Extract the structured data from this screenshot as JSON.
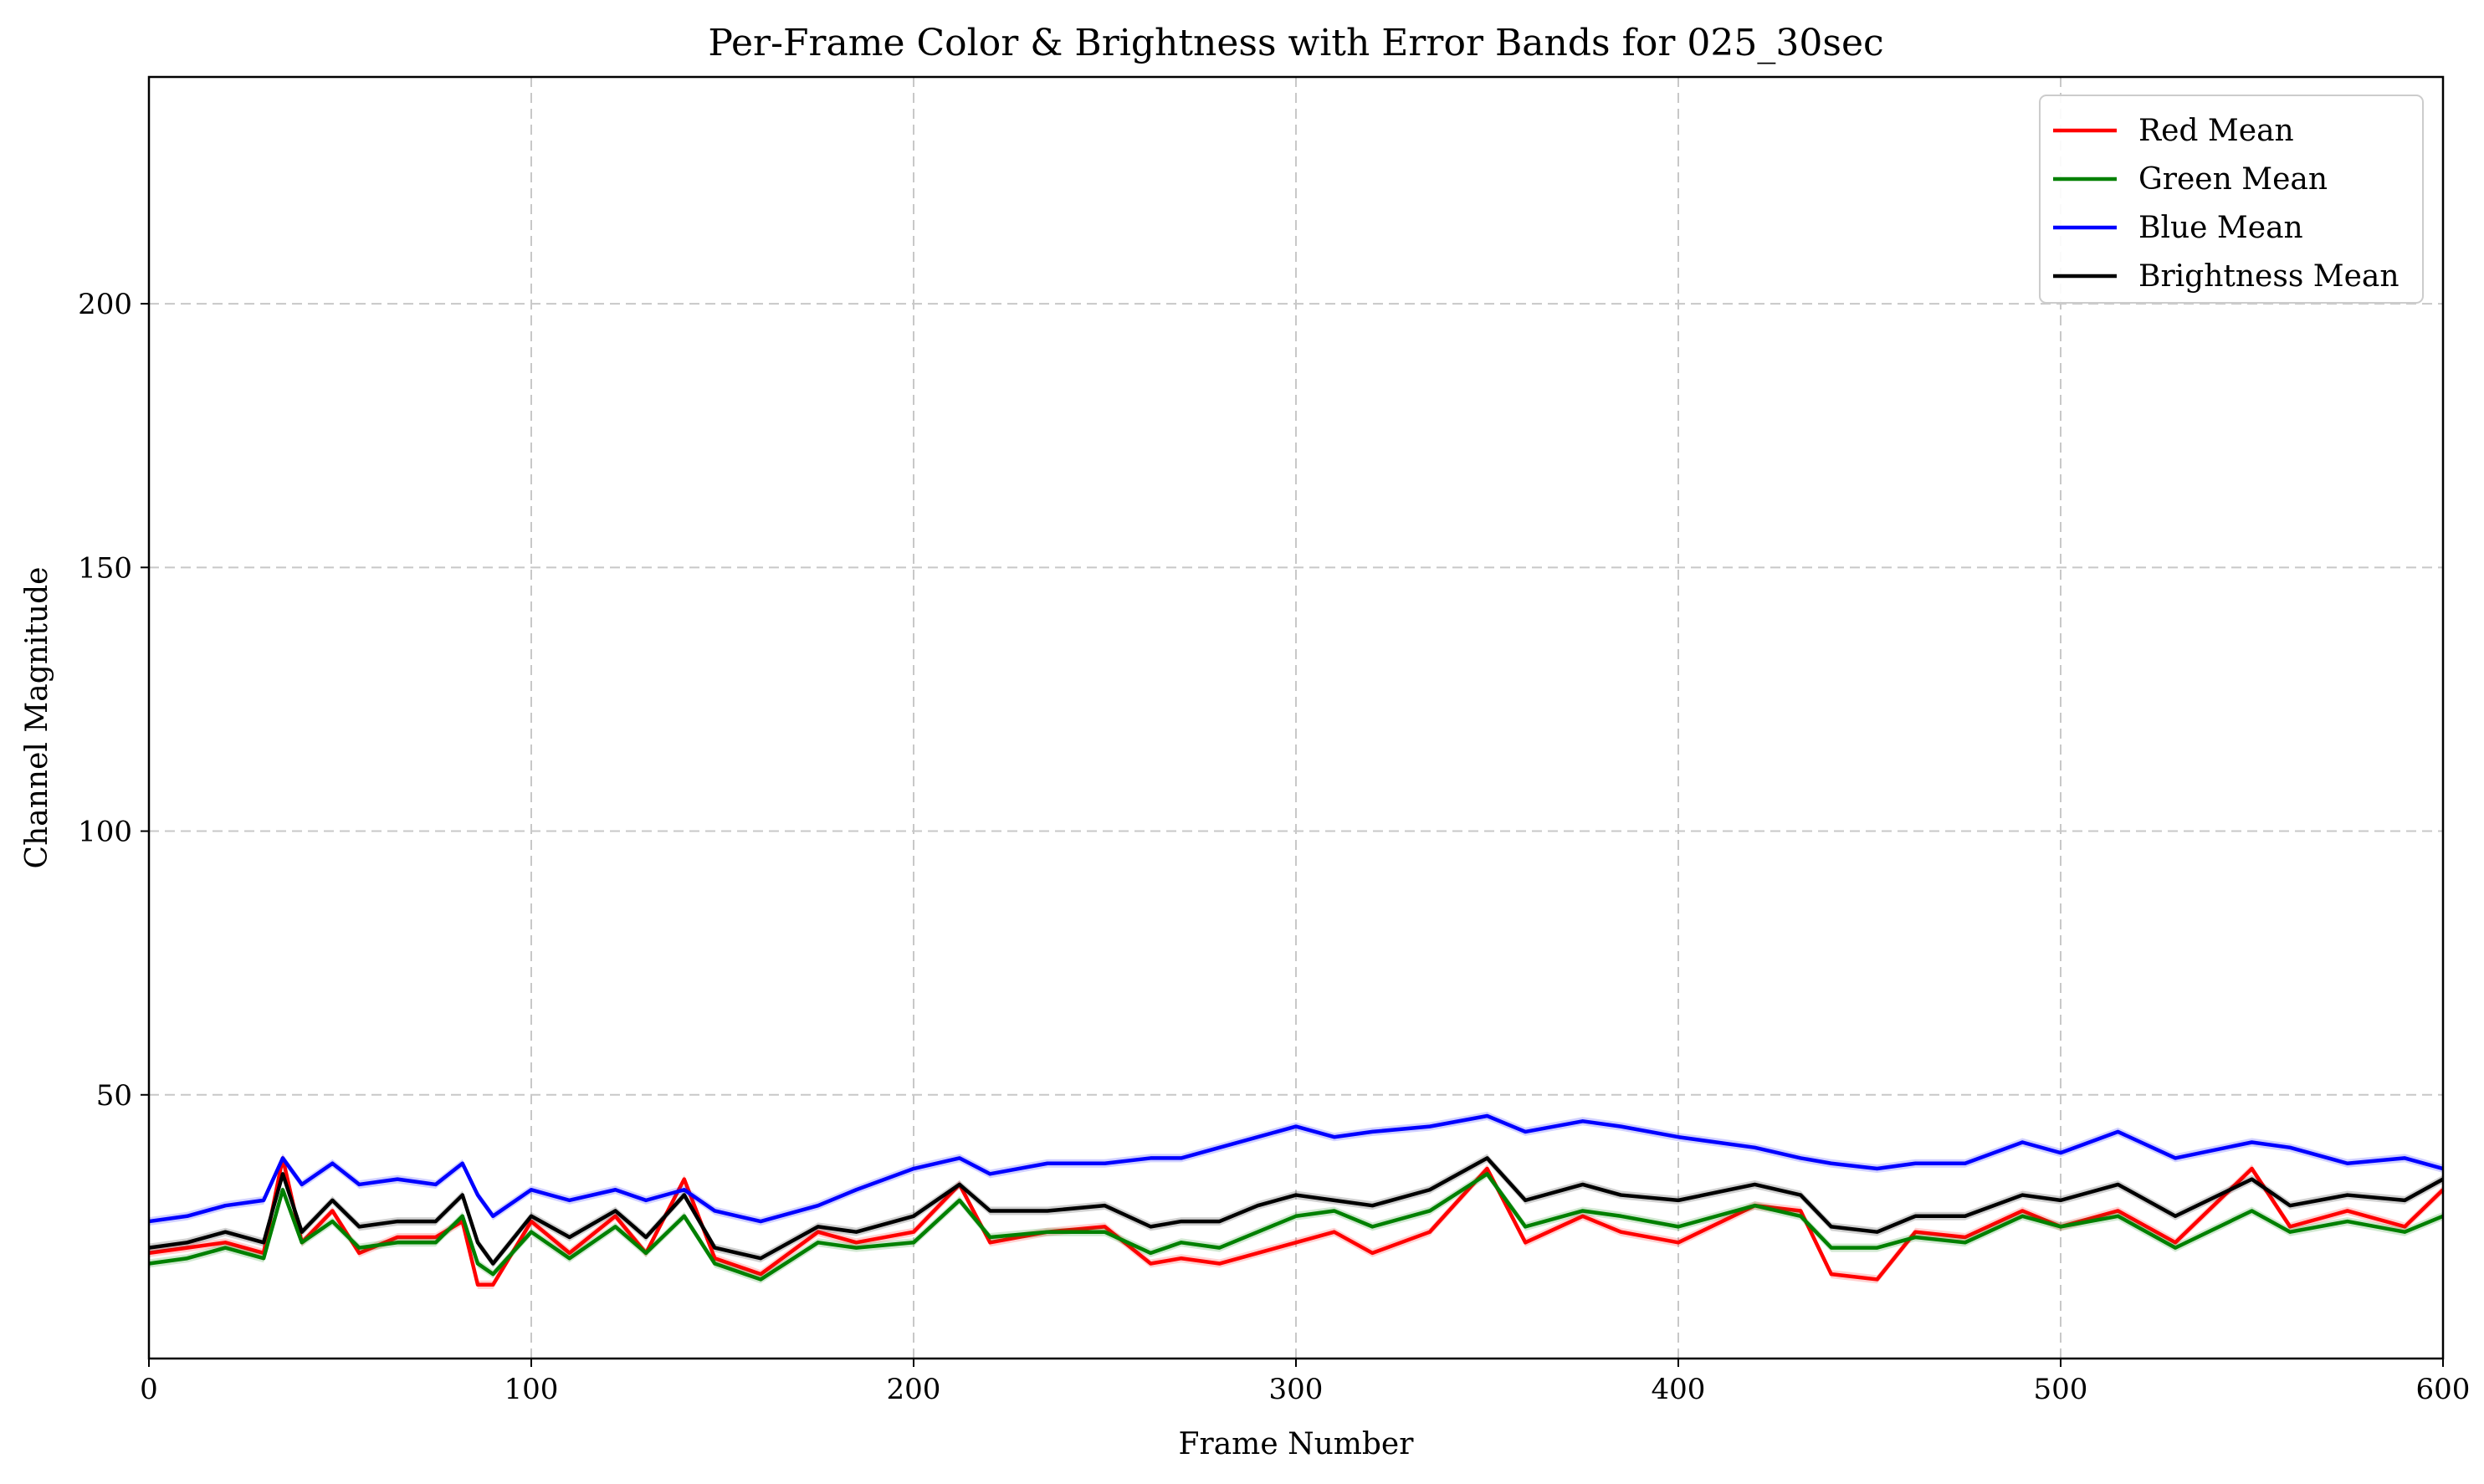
{
  "chart_data": {
    "type": "line",
    "title": "Per-Frame Color & Brightness with Error Bands for 025_30sec",
    "xlabel": "Frame Number",
    "ylabel": "Channel Magnitude",
    "xlim": [
      0,
      600
    ],
    "ylim": [
      0,
      243
    ],
    "xticks": [
      0,
      100,
      200,
      300,
      400,
      500,
      600
    ],
    "yticks": [
      50,
      100,
      150,
      200
    ],
    "grid": true,
    "grid_style": "dashed",
    "legend_position": "top-right",
    "error_bands": true,
    "series": [
      {
        "name": "Red Mean",
        "color": "#ff0000",
        "x": [
          0,
          10,
          20,
          30,
          35,
          40,
          48,
          55,
          65,
          75,
          82,
          86,
          90,
          100,
          110,
          122,
          130,
          140,
          148,
          160,
          175,
          185,
          200,
          212,
          220,
          235,
          250,
          262,
          270,
          280,
          290,
          300,
          310,
          320,
          335,
          350,
          360,
          375,
          385,
          400,
          420,
          432,
          440,
          452,
          462,
          475,
          490,
          500,
          515,
          530,
          550,
          560,
          575,
          590,
          600
        ],
        "values": [
          20,
          21,
          22,
          20,
          38,
          22,
          28,
          20,
          23,
          23,
          26,
          14,
          14,
          26,
          20,
          27,
          20,
          34,
          19,
          16,
          24,
          22,
          24,
          33,
          22,
          24,
          25,
          18,
          19,
          18,
          20,
          22,
          24,
          20,
          24,
          36,
          22,
          27,
          24,
          22,
          29,
          28,
          16,
          15,
          24,
          23,
          28,
          25,
          28,
          22,
          36,
          25,
          28,
          25,
          32
        ]
      },
      {
        "name": "Green Mean",
        "color": "#008000",
        "x": [
          0,
          10,
          20,
          30,
          35,
          40,
          48,
          55,
          65,
          75,
          82,
          86,
          90,
          100,
          110,
          122,
          130,
          140,
          148,
          160,
          175,
          185,
          200,
          212,
          220,
          235,
          250,
          262,
          270,
          280,
          290,
          300,
          310,
          320,
          335,
          350,
          360,
          375,
          385,
          400,
          420,
          432,
          440,
          452,
          462,
          475,
          490,
          500,
          515,
          530,
          550,
          560,
          575,
          590,
          600
        ],
        "values": [
          18,
          19,
          21,
          19,
          32,
          22,
          26,
          21,
          22,
          22,
          27,
          18,
          16,
          24,
          19,
          25,
          20,
          27,
          18,
          15,
          22,
          21,
          22,
          30,
          23,
          24,
          24,
          20,
          22,
          21,
          24,
          27,
          28,
          25,
          28,
          35,
          25,
          28,
          27,
          25,
          29,
          27,
          21,
          21,
          23,
          22,
          27,
          25,
          27,
          21,
          28,
          24,
          26,
          24,
          27
        ]
      },
      {
        "name": "Blue Mean",
        "color": "#0000ff",
        "x": [
          0,
          10,
          20,
          30,
          35,
          40,
          48,
          55,
          65,
          75,
          82,
          86,
          90,
          100,
          110,
          122,
          130,
          140,
          148,
          160,
          175,
          185,
          200,
          212,
          220,
          235,
          250,
          262,
          270,
          280,
          290,
          300,
          310,
          320,
          335,
          350,
          360,
          375,
          385,
          400,
          420,
          432,
          440,
          452,
          462,
          475,
          490,
          500,
          515,
          530,
          550,
          560,
          575,
          590,
          600
        ],
        "values": [
          26,
          27,
          29,
          30,
          38,
          33,
          37,
          33,
          34,
          33,
          37,
          31,
          27,
          32,
          30,
          32,
          30,
          32,
          28,
          26,
          29,
          32,
          36,
          38,
          35,
          37,
          37,
          38,
          38,
          40,
          42,
          44,
          42,
          43,
          44,
          46,
          43,
          45,
          44,
          42,
          40,
          38,
          37,
          36,
          37,
          37,
          41,
          39,
          43,
          38,
          41,
          40,
          37,
          38,
          36
        ]
      },
      {
        "name": "Brightness Mean",
        "color": "#000000",
        "x": [
          0,
          10,
          20,
          30,
          35,
          40,
          48,
          55,
          65,
          75,
          82,
          86,
          90,
          100,
          110,
          122,
          130,
          140,
          148,
          160,
          175,
          185,
          200,
          212,
          220,
          235,
          250,
          262,
          270,
          280,
          290,
          300,
          310,
          320,
          335,
          350,
          360,
          375,
          385,
          400,
          420,
          432,
          440,
          452,
          462,
          475,
          490,
          500,
          515,
          530,
          550,
          560,
          575,
          590,
          600
        ],
        "values": [
          21,
          22,
          24,
          22,
          35,
          24,
          30,
          25,
          26,
          26,
          31,
          22,
          18,
          27,
          23,
          28,
          23,
          31,
          21,
          19,
          25,
          24,
          27,
          33,
          28,
          28,
          29,
          25,
          26,
          26,
          29,
          31,
          30,
          29,
          32,
          38,
          30,
          33,
          31,
          30,
          33,
          31,
          25,
          24,
          27,
          27,
          31,
          30,
          33,
          27,
          34,
          29,
          31,
          30,
          34
        ]
      }
    ]
  }
}
